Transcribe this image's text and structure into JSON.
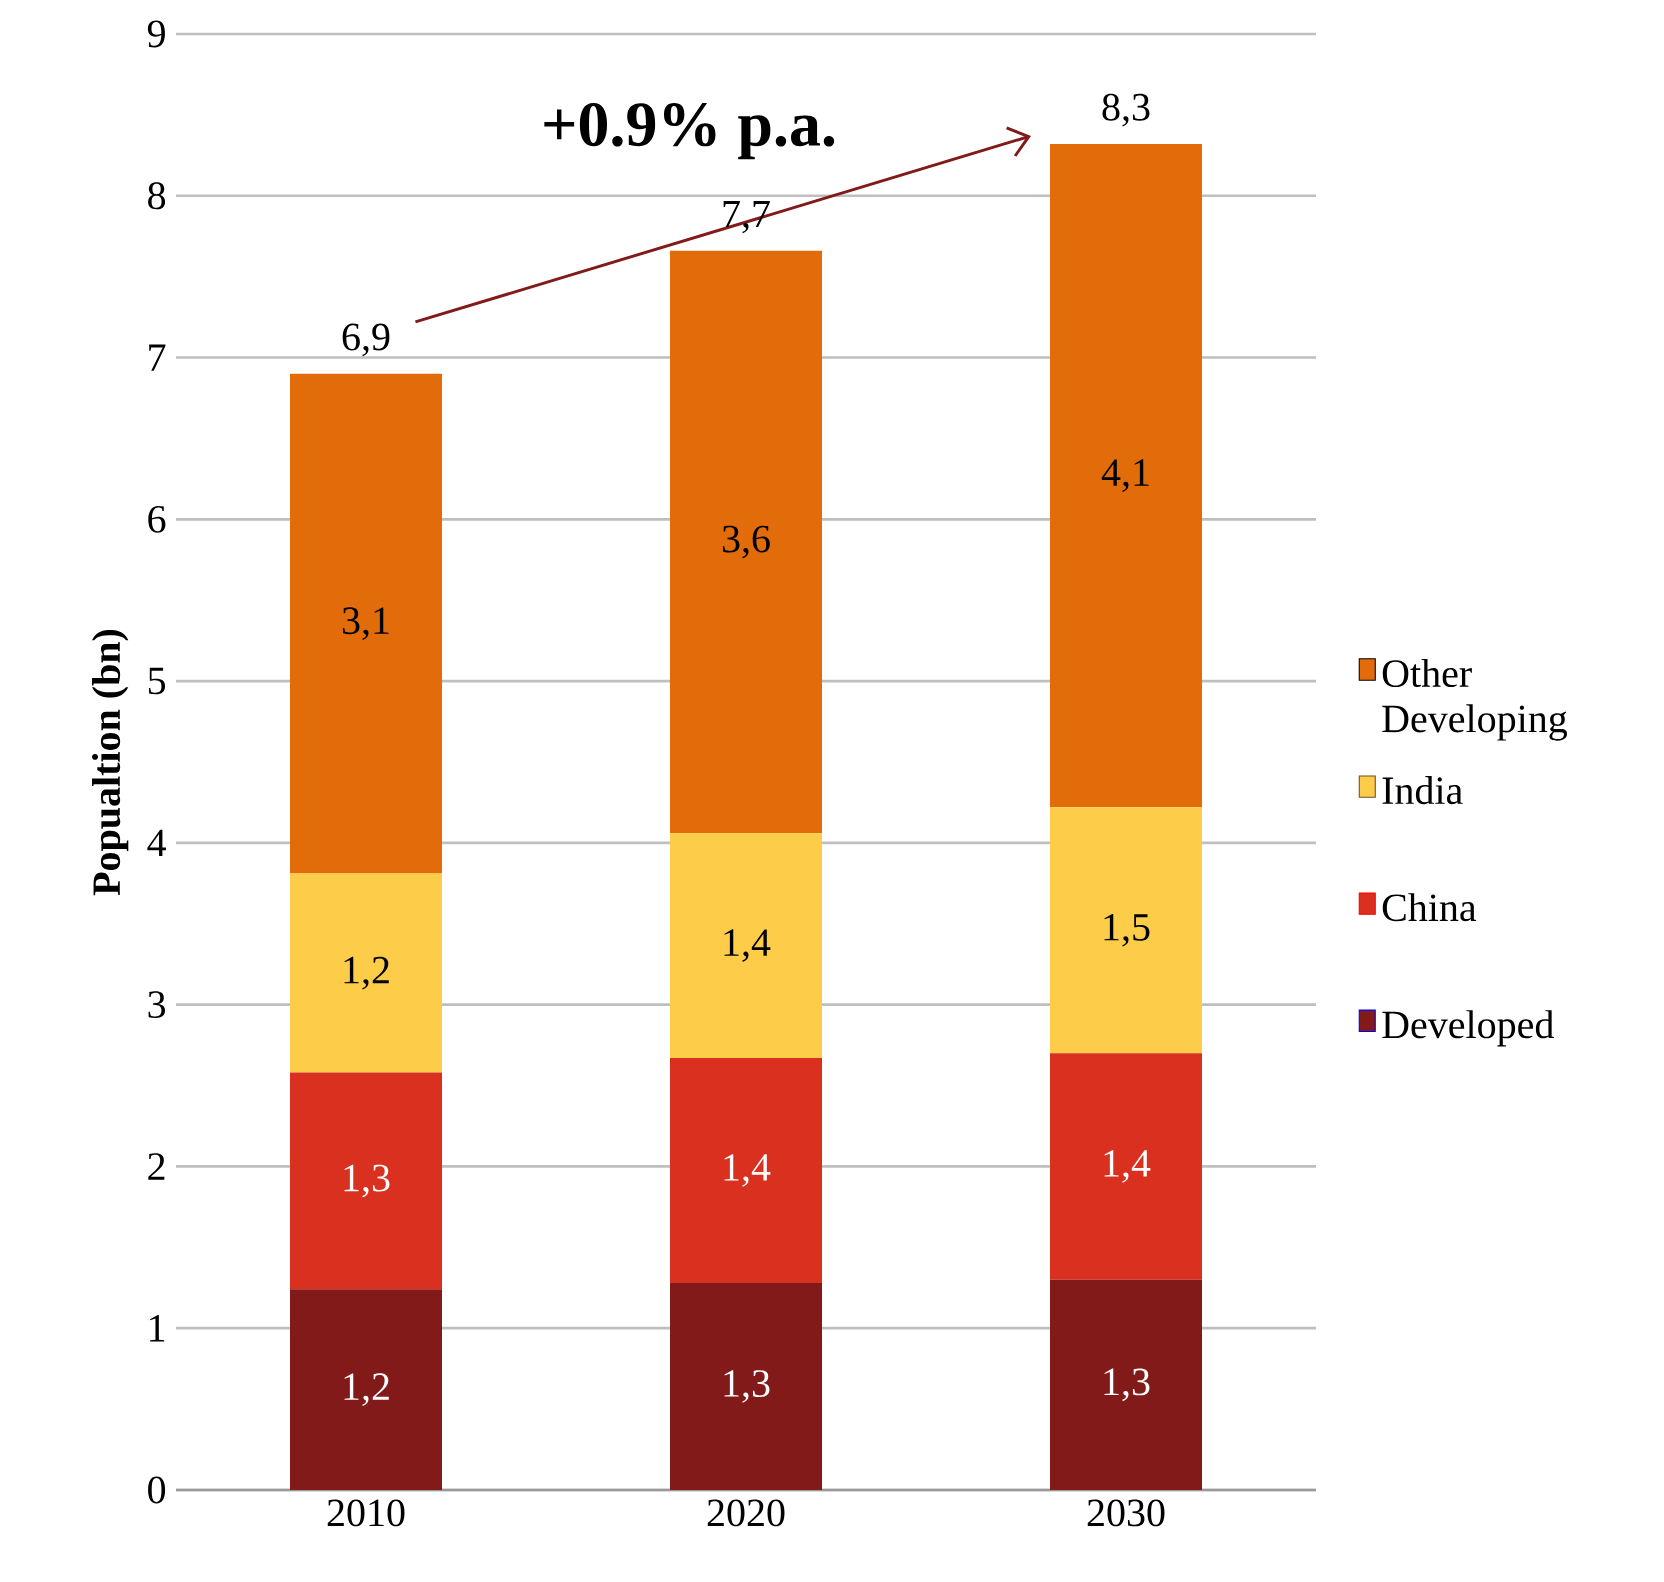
{
  "chart_data": {
    "type": "bar",
    "stacked": true,
    "ylabel": "Popualtion (bn)",
    "categories": [
      "2010",
      "2020",
      "2030"
    ],
    "series": [
      {
        "name": "Developed",
        "color": "#831a1a",
        "values": [
          1.24,
          1.28,
          1.3
        ],
        "value_labels": [
          "1,2",
          "1,3",
          "1,3"
        ]
      },
      {
        "name": "China",
        "color": "#d93020",
        "values": [
          1.34,
          1.39,
          1.4
        ],
        "value_labels": [
          "1,3",
          "1,4",
          "1,4"
        ]
      },
      {
        "name": "India",
        "color": "#fdcd4a",
        "values": [
          1.23,
          1.39,
          1.52
        ],
        "value_labels": [
          "1,2",
          "1,4",
          "1,5"
        ]
      },
      {
        "name": "Other Developing",
        "color": "#e36c0a",
        "values": [
          3.09,
          3.6,
          4.1
        ],
        "value_labels": [
          "3,1",
          "3,6",
          "4,1"
        ]
      }
    ],
    "totals": [
      "6,9",
      "7,7",
      "8,3"
    ],
    "annotations": [
      "+0.9% p.a."
    ],
    "ylim": [
      0,
      9
    ],
    "yticks": [
      0,
      1,
      2,
      3,
      4,
      5,
      6,
      7,
      8,
      9
    ],
    "grid": "y",
    "legend": "right"
  }
}
